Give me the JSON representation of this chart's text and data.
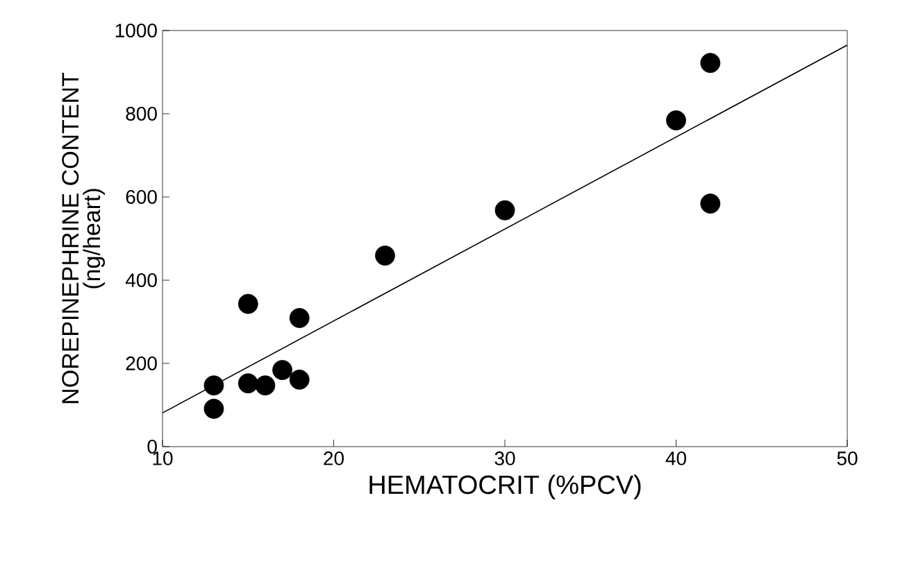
{
  "chart_data": {
    "type": "scatter",
    "xlabel": "HEMATOCRIT (%PCV)",
    "ylabel": "NOREPINEPHRINE CONTENT",
    "subtitle": "(ng/heart)",
    "xlim": [
      10,
      50
    ],
    "ylim": [
      0,
      1000
    ],
    "xticks": [
      10,
      20,
      30,
      40,
      50
    ],
    "yticks": [
      0,
      200,
      400,
      600,
      800,
      1000
    ],
    "grid": false,
    "series": [
      {
        "color": "#000000",
        "marker": "circle",
        "x": [
          13,
          13,
          15,
          16,
          17,
          18,
          15,
          18,
          23,
          30,
          40,
          42,
          42
        ],
        "values": [
          147,
          91,
          152,
          147,
          184,
          161,
          343,
          309,
          459,
          568,
          784,
          922,
          584
        ]
      },
      {
        "type": "line",
        "color": "#000000",
        "marker": "none",
        "x": [
          10,
          50
        ],
        "values": [
          81,
          965
        ]
      }
    ]
  }
}
